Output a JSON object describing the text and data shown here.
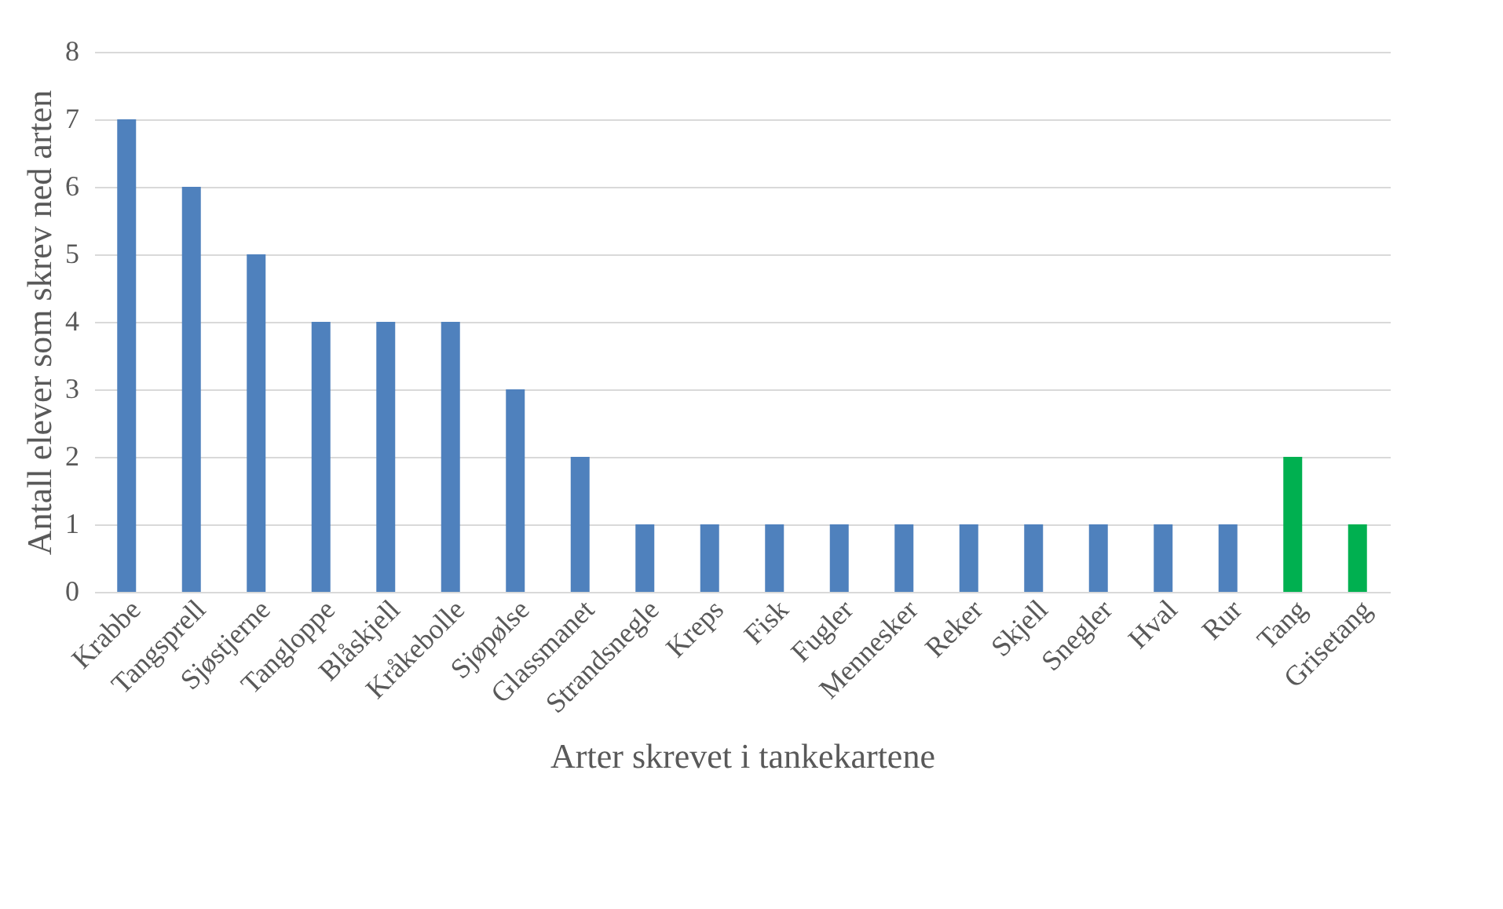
{
  "chart_data": {
    "type": "bar",
    "xlabel": "Arter skrevet i tankekartene",
    "ylabel": "Antall elever som skrev ned arten",
    "categories": [
      "Krabbe",
      "Tangsprell",
      "Sjøstjerne",
      "Tangloppe",
      "Blåskjell",
      "Kråkebolle",
      "Sjøpølse",
      "Glassmanet",
      "Strandsnegle",
      "Kreps",
      "Fisk",
      "Fugler",
      "Mennesker",
      "Reker",
      "Skjell",
      "Snegler",
      "Hval",
      "Rur",
      "Tang",
      "Grisetang"
    ],
    "values": [
      7,
      6,
      5,
      4,
      4,
      4,
      3,
      2,
      1,
      1,
      1,
      1,
      1,
      1,
      1,
      1,
      1,
      1,
      2,
      1
    ],
    "colors": [
      "#4f81bd",
      "#4f81bd",
      "#4f81bd",
      "#4f81bd",
      "#4f81bd",
      "#4f81bd",
      "#4f81bd",
      "#4f81bd",
      "#4f81bd",
      "#4f81bd",
      "#4f81bd",
      "#4f81bd",
      "#4f81bd",
      "#4f81bd",
      "#4f81bd",
      "#4f81bd",
      "#4f81bd",
      "#4f81bd",
      "#00b050",
      "#00b050"
    ],
    "ylim": [
      0,
      8
    ],
    "yticks": [
      0,
      1,
      2,
      3,
      4,
      5,
      6,
      7,
      8
    ],
    "grid": "y"
  }
}
